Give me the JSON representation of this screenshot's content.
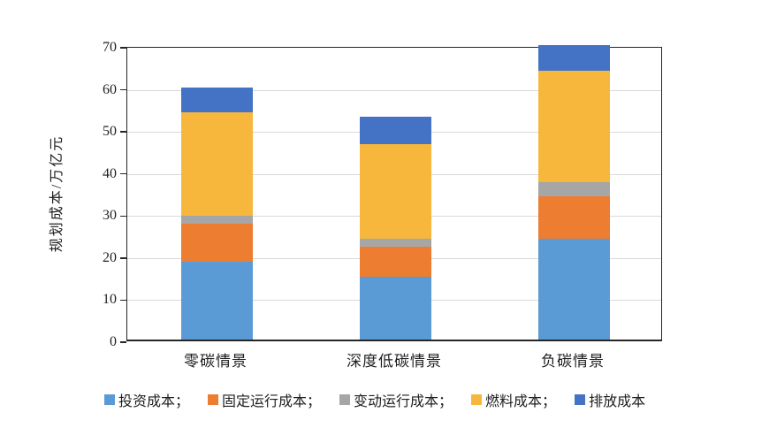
{
  "chart_data": {
    "type": "bar",
    "stacked": true,
    "title": "",
    "xlabel": "",
    "ylabel": "规划成本/万亿元",
    "ylim": [
      0,
      70
    ],
    "ytick_step": 10,
    "grid": true,
    "legend_position": "bottom",
    "categories": [
      "零碳情景",
      "深度低碳情景",
      "负碳情景"
    ],
    "series": [
      {
        "name": "投资成本",
        "legend_label": "投资成本；",
        "color": "#5B9BD5",
        "values": [
          18.5,
          15.0,
          24.0
        ]
      },
      {
        "name": "固定运行成本",
        "legend_label": "固定运行成本；",
        "color": "#ED7D31",
        "values": [
          9.0,
          7.0,
          10.0
        ]
      },
      {
        "name": "变动运行成本",
        "legend_label": "变动运行成本；",
        "color": "#A6A6A6",
        "values": [
          2.0,
          2.0,
          3.5
        ]
      },
      {
        "name": "燃料成本",
        "legend_label": "燃料成本；",
        "color": "#F6B73C",
        "values": [
          24.5,
          22.5,
          26.5
        ]
      },
      {
        "name": "排放成本",
        "legend_label": "排放成本",
        "color": "#4472C4",
        "values": [
          6.0,
          6.5,
          6.0
        ]
      }
    ],
    "totals": [
      60,
      53,
      70
    ]
  },
  "axis": {
    "ytick_labels": [
      "0",
      "10",
      "20",
      "30",
      "40",
      "50",
      "60",
      "70"
    ]
  }
}
